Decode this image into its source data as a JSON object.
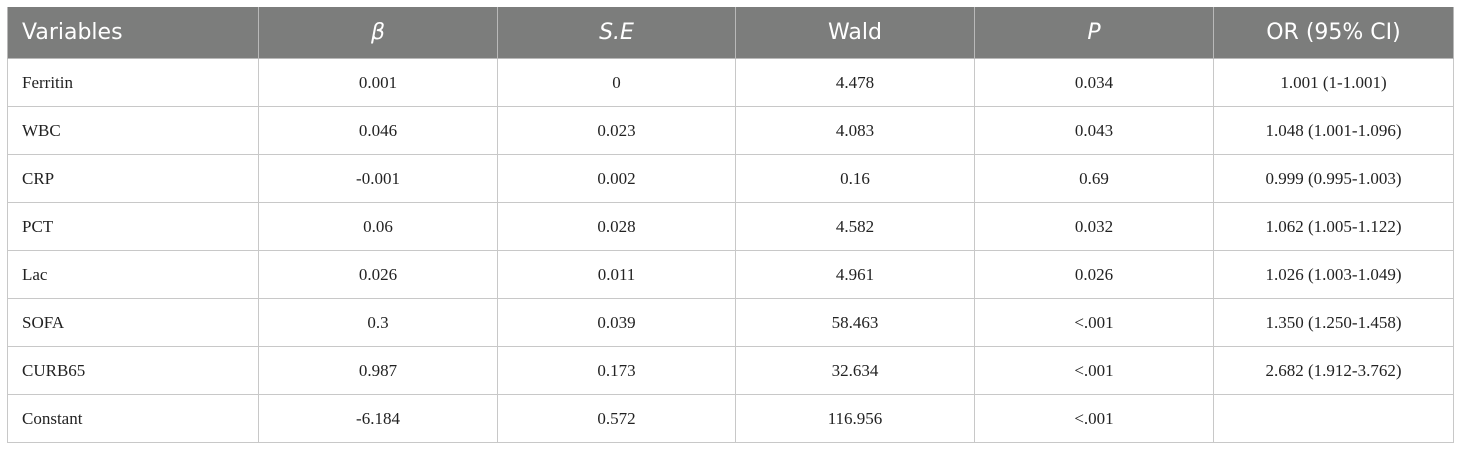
{
  "table": {
    "headers": [
      "Variables",
      "β",
      "S.E",
      "Wald",
      "P",
      "OR (95% CI)"
    ],
    "rows": [
      [
        "Ferritin",
        "0.001",
        "0",
        "4.478",
        "0.034",
        "1.001 (1-1.001)"
      ],
      [
        "WBC",
        "0.046",
        "0.023",
        "4.083",
        "0.043",
        "1.048 (1.001-1.096)"
      ],
      [
        "CRP",
        "-0.001",
        "0.002",
        "0.16",
        "0.69",
        "0.999 (0.995-1.003)"
      ],
      [
        "PCT",
        "0.06",
        "0.028",
        "4.582",
        "0.032",
        "1.062 (1.005-1.122)"
      ],
      [
        "Lac",
        "0.026",
        "0.011",
        "4.961",
        "0.026",
        "1.026 (1.003-1.049)"
      ],
      [
        "SOFA",
        "0.3",
        "0.039",
        "58.463",
        "<.001",
        "1.350 (1.250-1.458)"
      ],
      [
        "CURB65",
        "0.987",
        "0.173",
        "32.634",
        "<.001",
        "2.682 (1.912-3.762)"
      ],
      [
        "Constant",
        "-6.184",
        "0.572",
        "116.956",
        "<.001",
        ""
      ]
    ]
  }
}
